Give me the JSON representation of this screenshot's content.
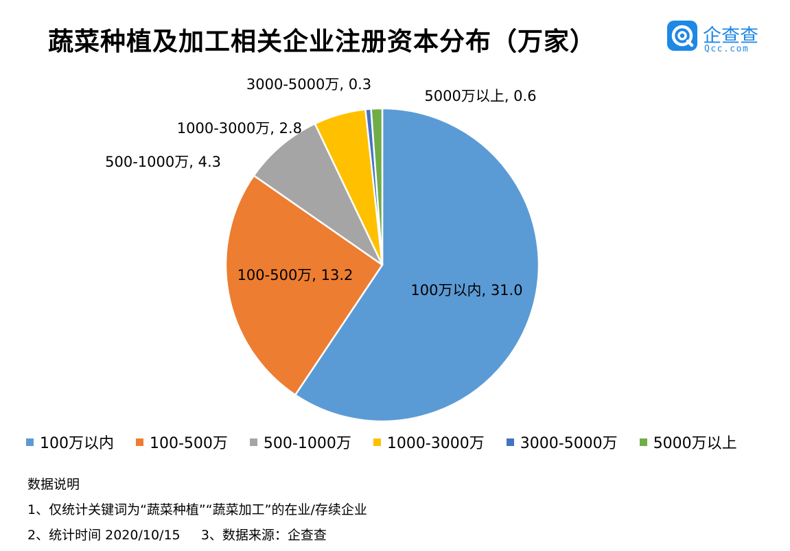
{
  "title": "蔬菜种植及加工相关企业注册资本分布（万家）",
  "logo": {
    "name": "企查查",
    "sub": "Qcc.com",
    "color": "#1e88e5"
  },
  "chart_data": {
    "type": "pie",
    "title": "蔬菜种植及加工相关企业注册资本分布（万家）",
    "legend_position": "bottom",
    "start": "12 o'clock",
    "direction": "clockwise",
    "slices": [
      {
        "label": "100万以内",
        "value": 31.0,
        "data_label": "100万以内, 31.0",
        "color": "#5b9bd5"
      },
      {
        "label": "100-500万",
        "value": 13.2,
        "data_label": "100-500万, 13.2",
        "color": "#ed7d31"
      },
      {
        "label": "500-1000万",
        "value": 4.3,
        "data_label": "500-1000万, 4.3",
        "color": "#a5a5a5"
      },
      {
        "label": "1000-3000万",
        "value": 2.8,
        "data_label": "1000-3000万, 2.8",
        "color": "#ffc000"
      },
      {
        "label": "3000-5000万",
        "value": 0.3,
        "data_label": "3000-5000万, 0.3",
        "color": "#4472c4"
      },
      {
        "label": "5000万以上",
        "value": 0.6,
        "data_label": "5000万以上, 0.6",
        "color": "#70ad47"
      }
    ]
  },
  "notes": {
    "heading": "数据说明",
    "line1": "1、仅统计关键词为“蔬菜种植”“蔬菜加工”的在业/存续企业",
    "line2": "2、统计时间 2020/10/15     3、数据来源：企查查"
  }
}
